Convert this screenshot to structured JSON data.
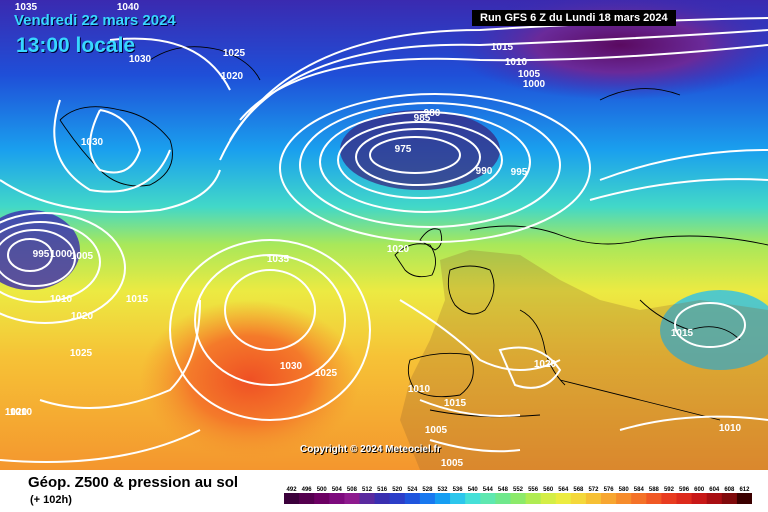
{
  "header": {
    "date": "Vendredi 22 mars 2024",
    "time": "13:00 locale",
    "run": "Run GFS 6 Z du Lundi 18 mars 2024"
  },
  "footer": {
    "copyright": "Copyright © 2024 Meteociel.fr",
    "title": "Géop. Z500 & pression au sol",
    "subtitle": "(+ 102h)"
  },
  "map": {
    "isobar_color": "#ffffff",
    "coast_color": "#000000",
    "low_fill": "#2a1040",
    "isobar_labels": [
      "1035",
      "1040",
      "1025",
      "1030",
      "1020",
      "1030",
      "1015",
      "1010",
      "1005",
      "1000",
      "980",
      "985",
      "975",
      "990",
      "995",
      "1020",
      "995",
      "1000",
      "1005",
      "1010",
      "1015",
      "1020",
      "1025",
      "1035",
      "1010",
      "1030",
      "1025",
      "1020",
      "1010",
      "1015",
      "1005",
      "1005",
      "1020",
      "1015",
      "1010"
    ]
  },
  "legend": {
    "ticks": [
      "492",
      "496",
      "500",
      "504",
      "508",
      "512",
      "516",
      "520",
      "524",
      "528",
      "532",
      "536",
      "540",
      "544",
      "548",
      "552",
      "556",
      "560",
      "564",
      "568",
      "572",
      "576",
      "580",
      "584",
      "588",
      "592",
      "596",
      "600",
      "604",
      "608",
      "612"
    ],
    "colors": [
      "#3b003b",
      "#55004f",
      "#6c0063",
      "#7d0a7d",
      "#8e1a8e",
      "#5a2a9f",
      "#3a2fb0",
      "#2c3ec8",
      "#1f55dd",
      "#1878ef",
      "#169ef2",
      "#2cc6ec",
      "#45e0d8",
      "#5ee8b0",
      "#6fe88c",
      "#8cea6a",
      "#b0ec52",
      "#d4ee46",
      "#ecec40",
      "#f4d83a",
      "#f6c034",
      "#f7a630",
      "#f68c2c",
      "#f47228",
      "#f05824",
      "#e83c20",
      "#dc2a1c",
      "#c81818",
      "#a80e12",
      "#800a0c",
      "#3a0000"
    ]
  }
}
